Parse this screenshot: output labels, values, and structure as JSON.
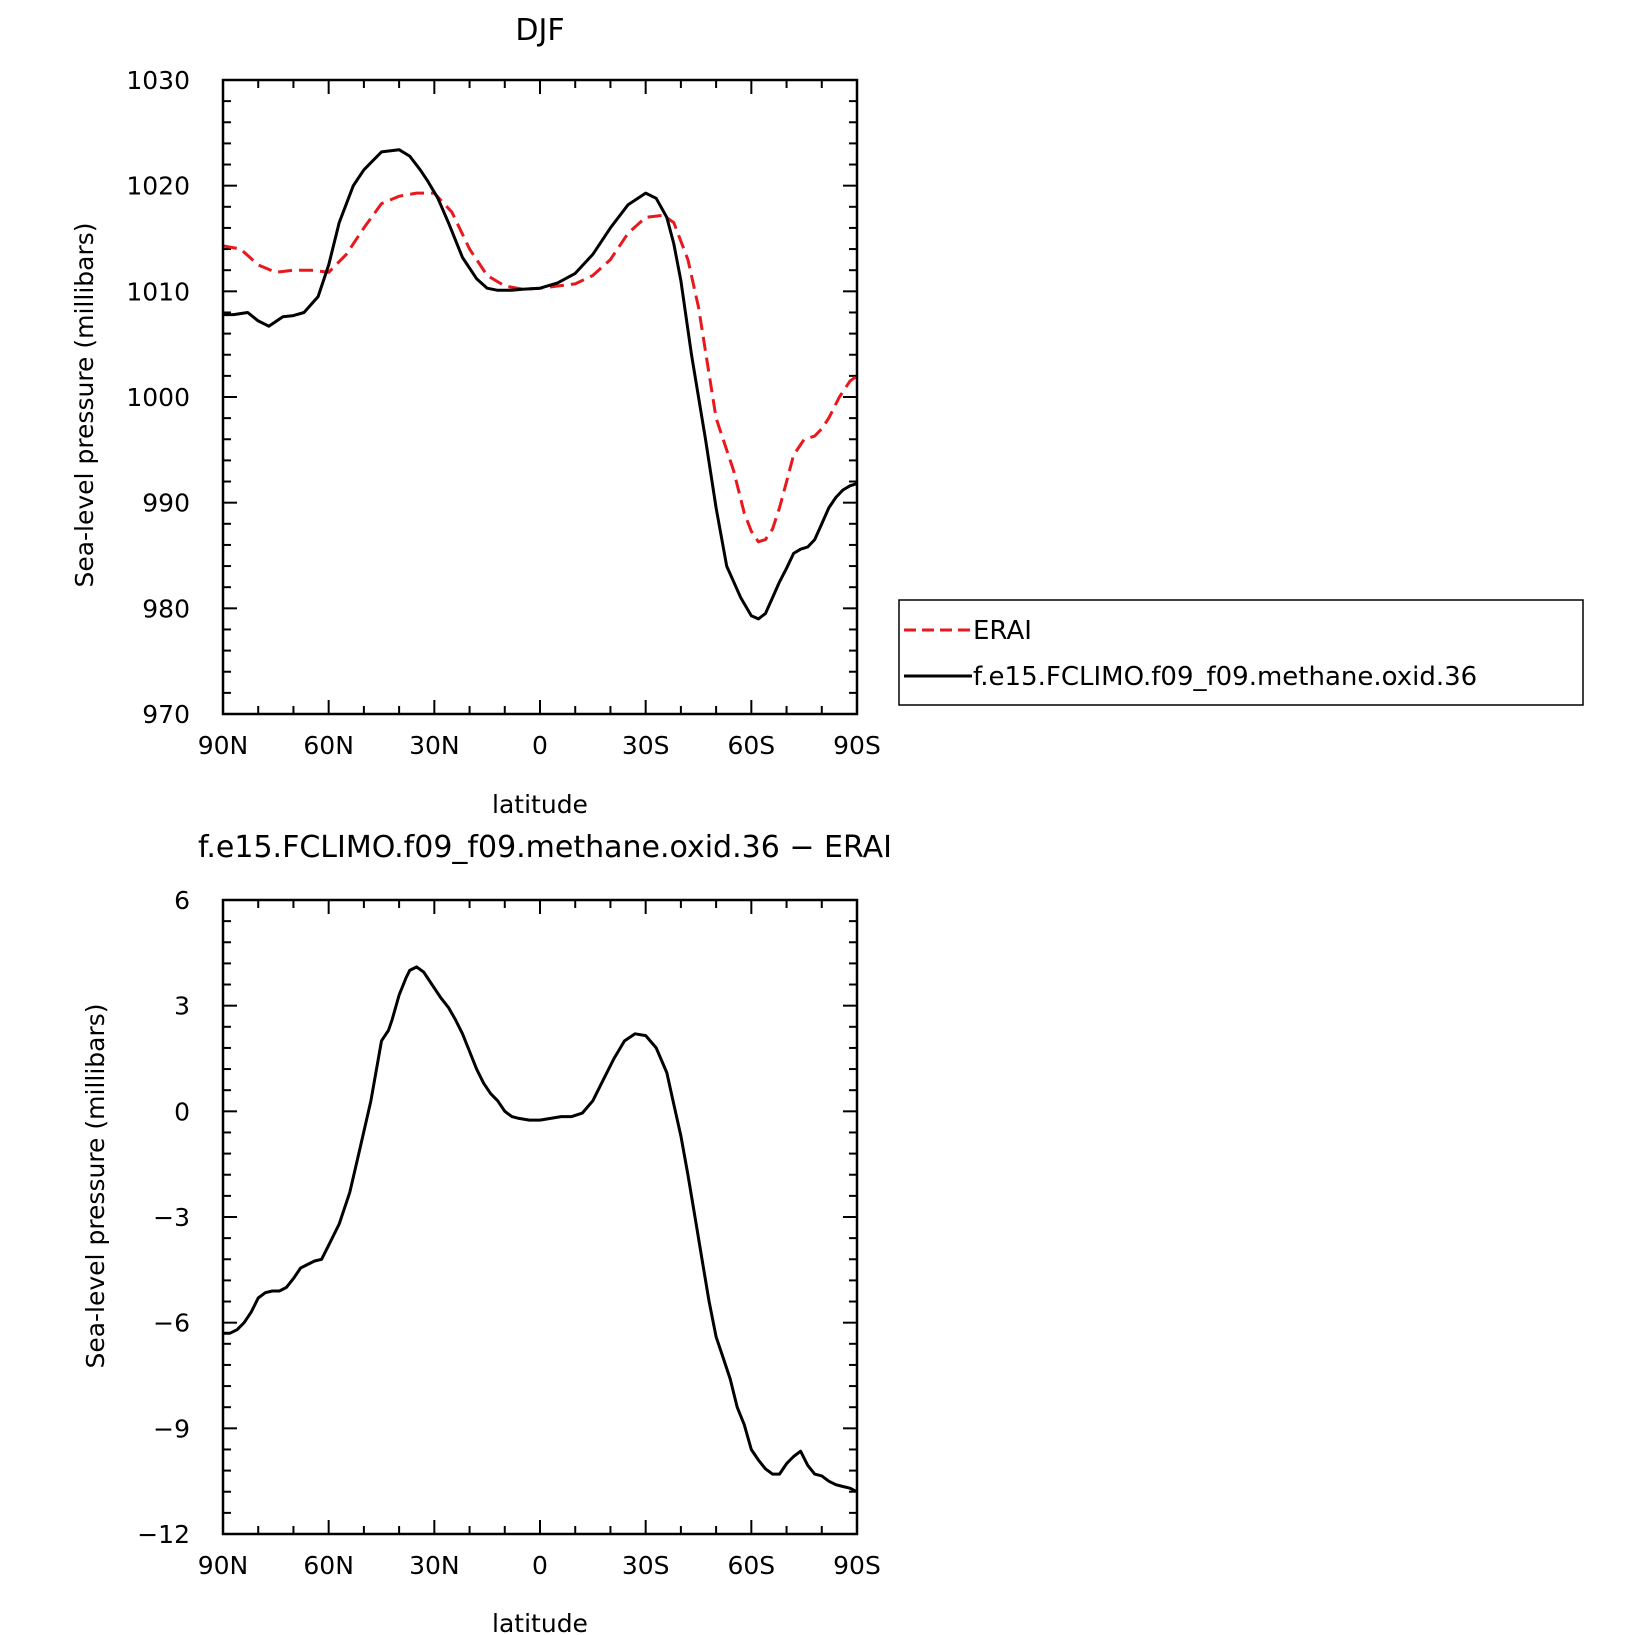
{
  "chart_data": [
    {
      "type": "line",
      "title": "DJF",
      "xlabel": "latitude",
      "ylabel": "Sea-level pressure (millibars)",
      "xlim": [
        90,
        -90
      ],
      "ylim": [
        970,
        1030
      ],
      "x_ticks": [
        {
          "value": 90,
          "label": "90N"
        },
        {
          "value": 60,
          "label": "60N"
        },
        {
          "value": 30,
          "label": "30N"
        },
        {
          "value": 0,
          "label": "0"
        },
        {
          "value": -30,
          "label": "30S"
        },
        {
          "value": -60,
          "label": "60S"
        },
        {
          "value": -90,
          "label": "90S"
        }
      ],
      "y_ticks": [
        {
          "value": 1030,
          "label": "1030"
        },
        {
          "value": 1020,
          "label": "1020"
        },
        {
          "value": 1010,
          "label": "1010"
        },
        {
          "value": 1000,
          "label": "1000"
        },
        {
          "value": 990,
          "label": "990"
        },
        {
          "value": 980,
          "label": "980"
        },
        {
          "value": 970,
          "label": "970"
        }
      ],
      "grid": false,
      "legend_position": "right",
      "series": [
        {
          "name": "ERAI",
          "color": "#e8191d",
          "style": "dashed",
          "x": [
            90,
            85,
            80,
            75,
            70,
            65,
            60,
            55,
            50,
            45,
            40,
            35,
            30,
            25,
            20,
            15,
            10,
            5,
            0,
            -5,
            -10,
            -15,
            -20,
            -25,
            -30,
            -35,
            -38,
            -42,
            -45,
            -50,
            -55,
            -58,
            -60,
            -62,
            -64,
            -66,
            -68,
            -70,
            -72,
            -75,
            -78,
            -80,
            -82,
            -85,
            -88,
            -90
          ],
          "y": [
            1014.3,
            1014.0,
            1012.5,
            1011.8,
            1012.0,
            1012.0,
            1011.8,
            1013.5,
            1016.0,
            1018.3,
            1019.0,
            1019.3,
            1019.3,
            1017.5,
            1014.0,
            1011.5,
            1010.5,
            1010.2,
            1010.3,
            1010.5,
            1010.7,
            1011.5,
            1013.0,
            1015.5,
            1017.0,
            1017.2,
            1016.5,
            1013.0,
            1008.5,
            998.0,
            993.0,
            989.0,
            987.3,
            986.3,
            986.5,
            987.5,
            989.5,
            992.0,
            994.5,
            996.0,
            996.3,
            997.0,
            998.0,
            1000.0,
            1001.5,
            1002.0
          ]
        },
        {
          "name": "f.e15.FCLIMO.f09_f09.methane.oxid.36",
          "color": "#000000",
          "style": "solid",
          "x": [
            90,
            87,
            83,
            80,
            77,
            73,
            70,
            67,
            63,
            60,
            57,
            53,
            50,
            45,
            40,
            37,
            34,
            32,
            29,
            26,
            22,
            18,
            15,
            12,
            8,
            5,
            0,
            -5,
            -10,
            -15,
            -20,
            -25,
            -30,
            -33,
            -36,
            -38,
            -40,
            -43,
            -47,
            -50,
            -53,
            -57,
            -60,
            -62,
            -64,
            -66,
            -68,
            -70,
            -72,
            -74,
            -76,
            -78,
            -80,
            -82,
            -84,
            -86,
            -88,
            -90
          ],
          "y": [
            1007.8,
            1007.8,
            1008.0,
            1007.2,
            1006.7,
            1007.6,
            1007.7,
            1008.0,
            1009.5,
            1012.5,
            1016.5,
            1020.0,
            1021.5,
            1023.2,
            1023.4,
            1022.8,
            1021.5,
            1020.5,
            1018.8,
            1016.5,
            1013.2,
            1011.2,
            1010.3,
            1010.1,
            1010.1,
            1010.2,
            1010.3,
            1010.8,
            1011.7,
            1013.5,
            1016.0,
            1018.2,
            1019.3,
            1018.8,
            1017.0,
            1014.5,
            1011.0,
            1004.0,
            996.0,
            989.5,
            984.0,
            981.0,
            979.3,
            979.0,
            979.5,
            981.0,
            982.5,
            983.8,
            985.2,
            985.6,
            985.8,
            986.5,
            988.0,
            989.5,
            990.5,
            991.2,
            991.6,
            991.8
          ]
        }
      ]
    },
    {
      "type": "line",
      "title": "f.e15.FCLIMO.f09_f09.methane.oxid.36 − ERAI",
      "xlabel": "latitude",
      "ylabel": "Sea-level pressure (millibars)",
      "xlim": [
        90,
        -90
      ],
      "ylim": [
        -12,
        6
      ],
      "x_ticks": [
        {
          "value": 90,
          "label": "90N"
        },
        {
          "value": 60,
          "label": "60N"
        },
        {
          "value": 30,
          "label": "30N"
        },
        {
          "value": 0,
          "label": "0"
        },
        {
          "value": -30,
          "label": "30S"
        },
        {
          "value": -60,
          "label": "60S"
        },
        {
          "value": -90,
          "label": "90S"
        }
      ],
      "y_ticks": [
        {
          "value": 6,
          "label": "6"
        },
        {
          "value": 3,
          "label": "3"
        },
        {
          "value": 0,
          "label": "0"
        },
        {
          "value": -3,
          "label": "−3"
        },
        {
          "value": -6,
          "label": "−6"
        },
        {
          "value": -9,
          "label": "−9"
        },
        {
          "value": -12,
          "label": "−12"
        }
      ],
      "grid": false,
      "series": [
        {
          "color": "#000000",
          "style": "solid",
          "x": [
            90,
            88,
            86,
            84,
            82,
            80,
            78,
            76,
            74,
            72,
            70,
            68,
            66,
            64,
            62,
            60,
            57,
            54,
            51,
            48,
            45,
            43,
            42,
            40,
            38,
            37,
            35,
            33,
            32,
            30,
            28,
            26,
            24,
            22,
            20,
            18,
            16,
            14,
            12,
            10,
            8,
            6,
            3,
            0,
            -3,
            -6,
            -9,
            -12,
            -15,
            -18,
            -21,
            -24,
            -27,
            -30,
            -33,
            -36,
            -38,
            -40,
            -42,
            -44,
            -46,
            -48,
            -50,
            -52,
            -54,
            -56,
            -58,
            -60,
            -62,
            -64,
            -66,
            -68,
            -70,
            -72,
            -74,
            -76,
            -78,
            -80,
            -82,
            -84,
            -86,
            -88,
            -89,
            -90
          ],
          "y": [
            -6.3,
            -6.3,
            -6.2,
            -6.0,
            -5.7,
            -5.3,
            -5.15,
            -5.1,
            -5.1,
            -5.0,
            -4.75,
            -4.45,
            -4.35,
            -4.25,
            -4.2,
            -3.8,
            -3.2,
            -2.3,
            -1.0,
            0.3,
            2.0,
            2.3,
            2.6,
            3.3,
            3.8,
            4.0,
            4.1,
            3.95,
            3.8,
            3.5,
            3.2,
            2.95,
            2.6,
            2.2,
            1.7,
            1.2,
            0.8,
            0.5,
            0.3,
            0.0,
            -0.15,
            -0.2,
            -0.25,
            -0.25,
            -0.2,
            -0.15,
            -0.15,
            -0.05,
            0.3,
            0.9,
            1.5,
            2.0,
            2.2,
            2.15,
            1.8,
            1.1,
            0.2,
            -0.7,
            -1.8,
            -3.0,
            -4.2,
            -5.4,
            -6.4,
            -7.0,
            -7.6,
            -8.4,
            -8.9,
            -9.6,
            -9.9,
            -10.15,
            -10.3,
            -10.3,
            -10.0,
            -9.8,
            -9.65,
            -10.05,
            -10.3,
            -10.35,
            -10.5,
            -10.6,
            -10.65,
            -10.7,
            -10.75,
            -10.8
          ]
        }
      ]
    }
  ]
}
